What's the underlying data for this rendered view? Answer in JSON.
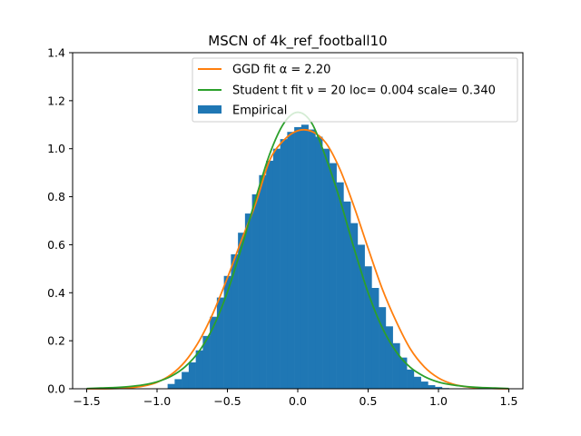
{
  "chart_data": {
    "type": "bar",
    "title": "MSCN of 4k_ref_football10",
    "xlabel": "",
    "ylabel": "",
    "xlim": [
      -1.6,
      1.6
    ],
    "ylim": [
      0,
      1.4
    ],
    "x_ticks": [
      -1.5,
      -1.0,
      -0.5,
      0.0,
      0.5,
      1.0,
      1.5
    ],
    "x_tick_labels": [
      "−1.5",
      "−1.0",
      "−0.5",
      "0.0",
      "0.5",
      "1.0",
      "1.5"
    ],
    "y_ticks": [
      0.0,
      0.2,
      0.4,
      0.6,
      0.8,
      1.0,
      1.2,
      1.4
    ],
    "y_tick_labels": [
      "0.0",
      "0.2",
      "0.4",
      "0.6",
      "0.8",
      "1.0",
      "1.2",
      "1.4"
    ],
    "grid": false,
    "legend_position": "top-right",
    "series": [
      {
        "name": "GGD fit α = 2.20",
        "type": "line",
        "color": "#ff7f0e",
        "x": [
          -1.5,
          -1.4,
          -1.3,
          -1.2,
          -1.1,
          -1.0,
          -0.9,
          -0.8,
          -0.7,
          -0.6,
          -0.5,
          -0.4,
          -0.3,
          -0.2,
          -0.1,
          0.0,
          0.1,
          0.2,
          0.3,
          0.4,
          0.5,
          0.6,
          0.7,
          0.8,
          0.9,
          1.0,
          1.1,
          1.2,
          1.3,
          1.4,
          1.5
        ],
        "y": [
          0.0,
          0.0,
          0.001,
          0.004,
          0.011,
          0.027,
          0.059,
          0.114,
          0.2,
          0.318,
          0.462,
          0.619,
          0.77,
          0.951,
          1.035,
          1.075,
          1.072,
          1.024,
          0.914,
          0.759,
          0.585,
          0.417,
          0.28,
          0.166,
          0.091,
          0.045,
          0.02,
          0.008,
          0.003,
          0.001,
          0.0
        ]
      },
      {
        "name": "Student t fit ν = 20 loc= 0.004 scale= 0.340",
        "type": "line",
        "color": "#2ca02c",
        "x": [
          -1.5,
          -1.4,
          -1.3,
          -1.2,
          -1.1,
          -1.0,
          -0.9,
          -0.8,
          -0.7,
          -0.6,
          -0.5,
          -0.4,
          -0.3,
          -0.2,
          -0.1,
          0.0,
          0.1,
          0.2,
          0.3,
          0.4,
          0.5,
          0.6,
          0.7,
          0.8,
          0.9,
          1.0,
          1.1,
          1.2,
          1.3,
          1.4,
          1.5
        ],
        "y": [
          0.001,
          0.003,
          0.005,
          0.009,
          0.016,
          0.029,
          0.052,
          0.092,
          0.157,
          0.258,
          0.403,
          0.588,
          0.79,
          0.977,
          1.105,
          1.152,
          1.106,
          0.962,
          0.787,
          0.585,
          0.4,
          0.255,
          0.154,
          0.089,
          0.051,
          0.028,
          0.016,
          0.009,
          0.005,
          0.003,
          0.001
        ]
      },
      {
        "name": "Empirical",
        "type": "histogram",
        "color": "#1f77b4",
        "x": [
          -0.9,
          -0.85,
          -0.8,
          -0.75,
          -0.7,
          -0.65,
          -0.6,
          -0.55,
          -0.5,
          -0.45,
          -0.4,
          -0.35,
          -0.3,
          -0.25,
          -0.2,
          -0.15,
          -0.1,
          -0.05,
          0.0,
          0.05,
          0.1,
          0.15,
          0.2,
          0.25,
          0.3,
          0.35,
          0.4,
          0.45,
          0.5,
          0.55,
          0.6,
          0.65,
          0.7,
          0.75,
          0.8,
          0.85,
          0.9,
          0.95,
          1.0,
          1.05
        ],
        "y": [
          0.02,
          0.04,
          0.07,
          0.11,
          0.16,
          0.22,
          0.3,
          0.38,
          0.47,
          0.56,
          0.65,
          0.73,
          0.81,
          0.89,
          0.95,
          1.0,
          1.04,
          1.07,
          1.09,
          1.1,
          1.08,
          1.05,
          1.0,
          0.94,
          0.86,
          0.78,
          0.69,
          0.6,
          0.51,
          0.42,
          0.34,
          0.26,
          0.19,
          0.13,
          0.08,
          0.05,
          0.03,
          0.015,
          0.008,
          0.003
        ]
      }
    ]
  }
}
